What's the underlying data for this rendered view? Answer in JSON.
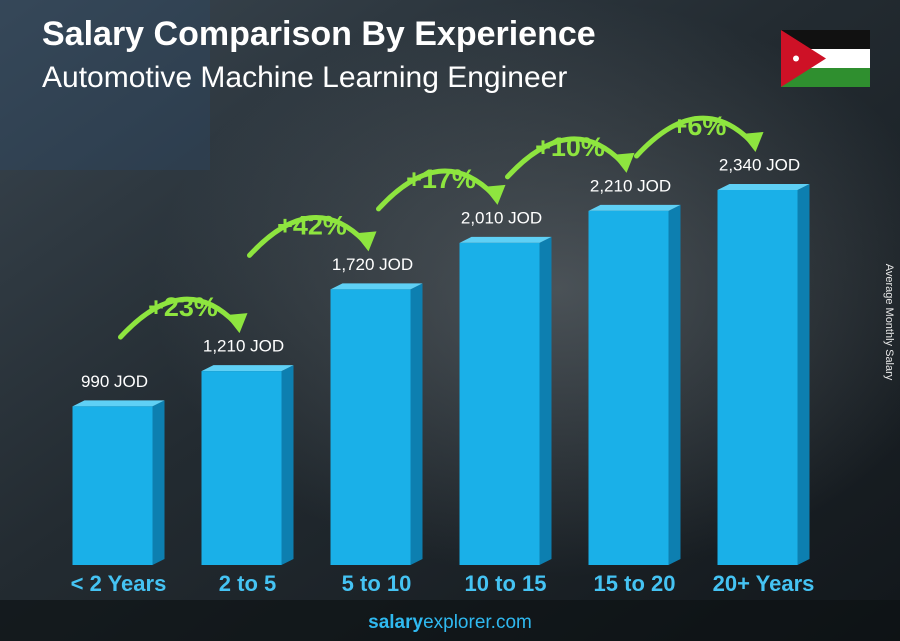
{
  "chart_data": {
    "type": "bar",
    "title": "Salary Comparison By Experience",
    "subtitle": "Automotive Machine Learning Engineer",
    "y_axis_label": "Average Monthly Salary",
    "categories": [
      "< 2 Years",
      "2 to 5",
      "5 to 10",
      "10 to 15",
      "15 to 20",
      "20+ Years"
    ],
    "values": [
      990,
      1210,
      1720,
      2010,
      2210,
      2340
    ],
    "value_labels": [
      "990 JOD",
      "1,210 JOD",
      "1,720 JOD",
      "2,010 JOD",
      "2,210 JOD",
      "2,340 JOD"
    ],
    "changes": [
      23,
      42,
      17,
      10,
      6
    ],
    "change_labels": [
      "+23%",
      "+42%",
      "+17%",
      "+10%",
      "+6%"
    ],
    "color": "#1ab0e8",
    "change_color": "#8ee53f",
    "footer": {
      "bold": "salary",
      "rest": "explorer.com"
    }
  }
}
